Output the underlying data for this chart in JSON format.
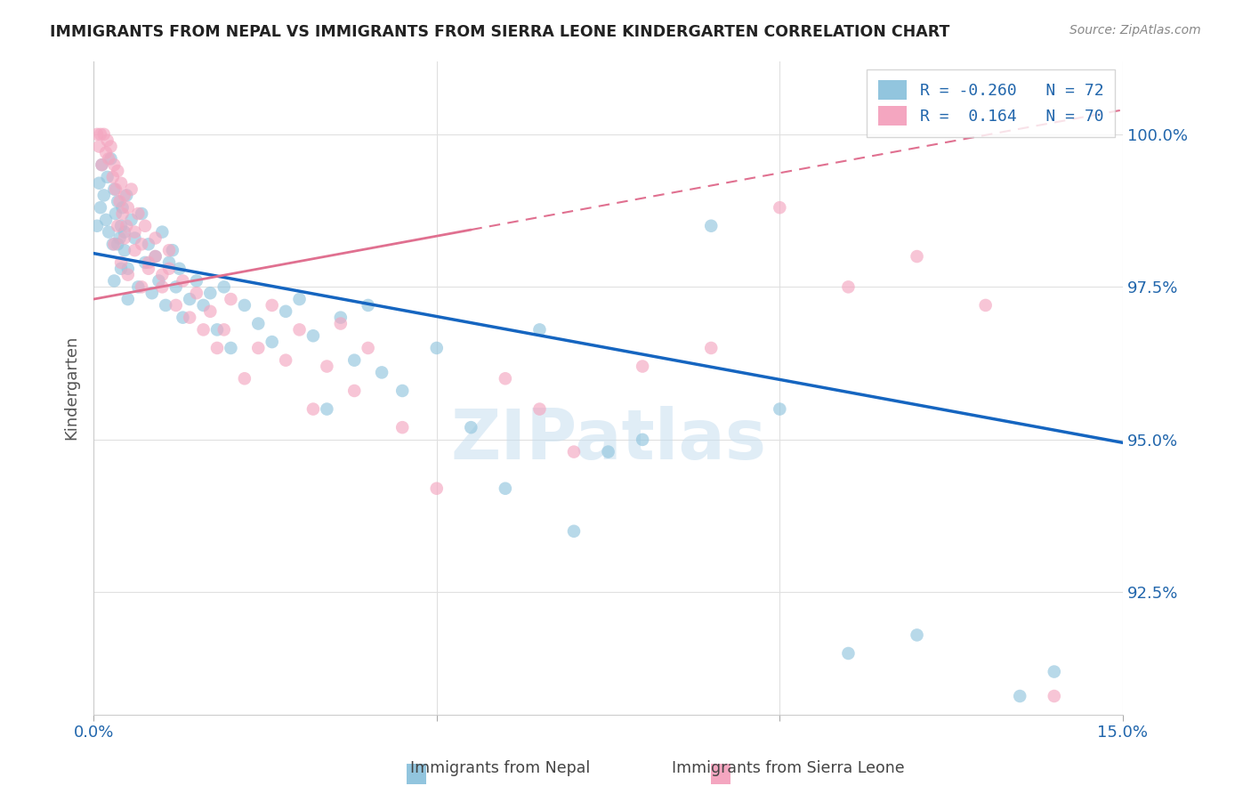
{
  "title": "IMMIGRANTS FROM NEPAL VS IMMIGRANTS FROM SIERRA LEONE KINDERGARTEN CORRELATION CHART",
  "source": "Source: ZipAtlas.com",
  "xlabel_blue": "Immigrants from Nepal",
  "xlabel_pink": "Immigrants from Sierra Leone",
  "ylabel": "Kindergarten",
  "xlim": [
    0.0,
    15.0
  ],
  "ylim": [
    90.5,
    101.2
  ],
  "ytick_positions": [
    92.5,
    95.0,
    97.5,
    100.0
  ],
  "ytick_labels": [
    "92.5%",
    "95.0%",
    "97.5%",
    "100.0%"
  ],
  "xtick_positions": [
    0.0,
    5.0,
    10.0,
    15.0
  ],
  "xtick_labels": [
    "0.0%",
    "",
    "",
    "15.0%"
  ],
  "R_blue": -0.26,
  "N_blue": 72,
  "R_pink": 0.164,
  "N_pink": 70,
  "color_blue": "#92C5DE",
  "color_pink": "#F4A6C0",
  "line_blue": "#1565C0",
  "line_pink": "#E07090",
  "watermark_text": "ZIPatlas",
  "blue_line_x0": 0.0,
  "blue_line_y0": 98.05,
  "blue_line_x1": 15.0,
  "blue_line_y1": 94.95,
  "pink_line_x0": 0.0,
  "pink_line_y0": 97.3,
  "pink_line_x1": 15.0,
  "pink_line_y1": 100.4,
  "nepal_x": [
    0.05,
    0.08,
    0.1,
    0.12,
    0.15,
    0.18,
    0.2,
    0.22,
    0.25,
    0.28,
    0.3,
    0.32,
    0.35,
    0.38,
    0.4,
    0.42,
    0.45,
    0.48,
    0.5,
    0.55,
    0.6,
    0.65,
    0.7,
    0.75,
    0.8,
    0.85,
    0.9,
    0.95,
    1.0,
    1.05,
    1.1,
    1.15,
    1.2,
    1.25,
    1.3,
    1.4,
    1.5,
    1.6,
    1.7,
    1.8,
    1.9,
    2.0,
    2.2,
    2.4,
    2.6,
    2.8,
    3.0,
    3.2,
    3.4,
    3.6,
    3.8,
    4.0,
    4.2,
    4.5,
    5.0,
    5.5,
    6.0,
    6.5,
    7.0,
    7.5,
    8.0,
    9.0,
    10.0,
    11.0,
    12.0,
    13.5,
    14.0,
    0.3,
    0.35,
    0.4,
    0.45,
    0.5
  ],
  "nepal_y": [
    98.5,
    99.2,
    98.8,
    99.5,
    99.0,
    98.6,
    99.3,
    98.4,
    99.6,
    98.2,
    99.1,
    98.7,
    98.9,
    98.3,
    98.5,
    98.8,
    98.1,
    99.0,
    97.8,
    98.6,
    98.3,
    97.5,
    98.7,
    97.9,
    98.2,
    97.4,
    98.0,
    97.6,
    98.4,
    97.2,
    97.9,
    98.1,
    97.5,
    97.8,
    97.0,
    97.3,
    97.6,
    97.2,
    97.4,
    96.8,
    97.5,
    96.5,
    97.2,
    96.9,
    96.6,
    97.1,
    97.3,
    96.7,
    95.5,
    97.0,
    96.3,
    97.2,
    96.1,
    95.8,
    96.5,
    95.2,
    94.2,
    96.8,
    93.5,
    94.8,
    95.0,
    98.5,
    95.5,
    91.5,
    91.8,
    90.8,
    91.2,
    97.6,
    98.2,
    97.8,
    98.4,
    97.3
  ],
  "sierra_x": [
    0.05,
    0.08,
    0.1,
    0.12,
    0.15,
    0.18,
    0.2,
    0.22,
    0.25,
    0.28,
    0.3,
    0.32,
    0.35,
    0.38,
    0.4,
    0.42,
    0.45,
    0.48,
    0.5,
    0.55,
    0.6,
    0.65,
    0.7,
    0.75,
    0.8,
    0.9,
    1.0,
    1.1,
    1.2,
    1.3,
    1.4,
    1.5,
    1.6,
    1.7,
    1.8,
    1.9,
    2.0,
    2.2,
    2.4,
    2.6,
    2.8,
    3.0,
    3.2,
    3.4,
    3.6,
    3.8,
    4.0,
    4.5,
    5.0,
    6.0,
    6.5,
    7.0,
    8.0,
    9.0,
    10.0,
    11.0,
    12.0,
    13.0,
    14.0,
    0.3,
    0.35,
    0.4,
    0.45,
    0.5,
    0.6,
    0.7,
    0.8,
    0.9,
    1.0,
    1.1
  ],
  "sierra_y": [
    100.0,
    99.8,
    100.0,
    99.5,
    100.0,
    99.7,
    99.9,
    99.6,
    99.8,
    99.3,
    99.5,
    99.1,
    99.4,
    98.9,
    99.2,
    98.7,
    99.0,
    98.5,
    98.8,
    99.1,
    98.4,
    98.7,
    98.2,
    98.5,
    97.8,
    98.0,
    97.5,
    97.8,
    97.2,
    97.6,
    97.0,
    97.4,
    96.8,
    97.1,
    96.5,
    96.8,
    97.3,
    96.0,
    96.5,
    97.2,
    96.3,
    96.8,
    95.5,
    96.2,
    96.9,
    95.8,
    96.5,
    95.2,
    94.2,
    96.0,
    95.5,
    94.8,
    96.2,
    96.5,
    98.8,
    97.5,
    98.0,
    97.2,
    90.8,
    98.2,
    98.5,
    97.9,
    98.3,
    97.7,
    98.1,
    97.5,
    97.9,
    98.3,
    97.7,
    98.1
  ]
}
